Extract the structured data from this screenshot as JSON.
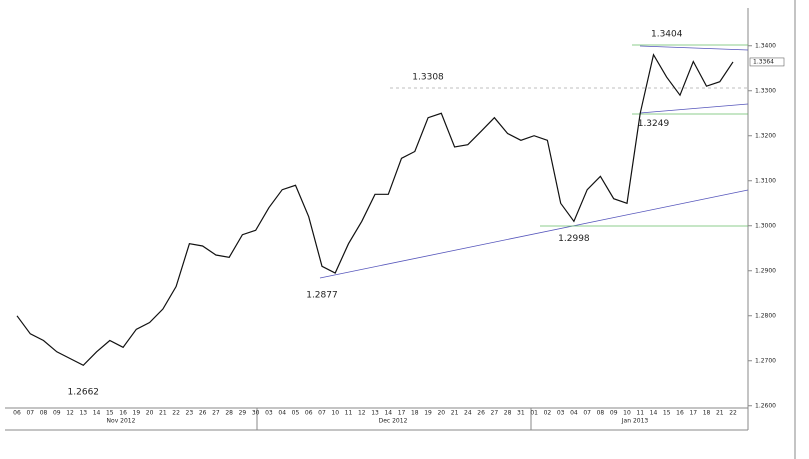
{
  "chart_data": {
    "type": "line",
    "color": "#111111",
    "categories": [
      "06",
      "07",
      "08",
      "09",
      "12",
      "13",
      "14",
      "15",
      "16",
      "19",
      "20",
      "21",
      "22",
      "23",
      "26",
      "27",
      "28",
      "29",
      "30",
      "03",
      "04",
      "05",
      "06",
      "07",
      "10",
      "11",
      "12",
      "13",
      "14",
      "17",
      "18",
      "19",
      "20",
      "21",
      "24",
      "26",
      "27",
      "28",
      "31",
      "01",
      "02",
      "03",
      "04",
      "07",
      "08",
      "09",
      "10",
      "11",
      "14",
      "15",
      "16",
      "17",
      "18",
      "21",
      "22"
    ],
    "values": [
      1.28,
      1.276,
      1.2745,
      1.272,
      1.2705,
      1.269,
      1.272,
      1.2745,
      1.273,
      1.277,
      1.2785,
      1.2815,
      1.2865,
      1.296,
      1.2955,
      1.2935,
      1.293,
      1.298,
      1.299,
      1.304,
      1.308,
      1.309,
      1.302,
      1.291,
      1.2895,
      1.296,
      1.301,
      1.307,
      1.307,
      1.315,
      1.3165,
      1.324,
      1.325,
      1.3175,
      1.318,
      1.321,
      1.324,
      1.3205,
      1.319,
      1.32,
      1.319,
      1.305,
      1.301,
      1.308,
      1.311,
      1.306,
      1.305,
      1.325,
      1.338,
      1.333,
      1.329,
      1.3365,
      1.331,
      1.332,
      1.3364
    ],
    "months": [
      "Nov 2012",
      "Dec 2012",
      "Jan 2013"
    ],
    "annotations": [
      1.2662,
      1.2877,
      1.3308,
      1.2998,
      1.3249,
      1.3404
    ],
    "last_price": 1.3364,
    "ylim": [
      1.2595,
      1.3475
    ],
    "yticks": [
      {
        "value": 1.26,
        "label": "1.2600"
      },
      {
        "value": 1.27,
        "label": "1.2700"
      },
      {
        "value": 1.28,
        "label": "1.2800"
      },
      {
        "value": 1.29,
        "label": "1.2900"
      },
      {
        "value": 1.3,
        "label": "1.3000"
      },
      {
        "value": 1.31,
        "label": "1.3100"
      },
      {
        "value": 1.32,
        "label": "1.3200"
      },
      {
        "value": 1.33,
        "label": "1.3300"
      },
      {
        "value": 1.34,
        "label": "1.3400"
      }
    ]
  }
}
